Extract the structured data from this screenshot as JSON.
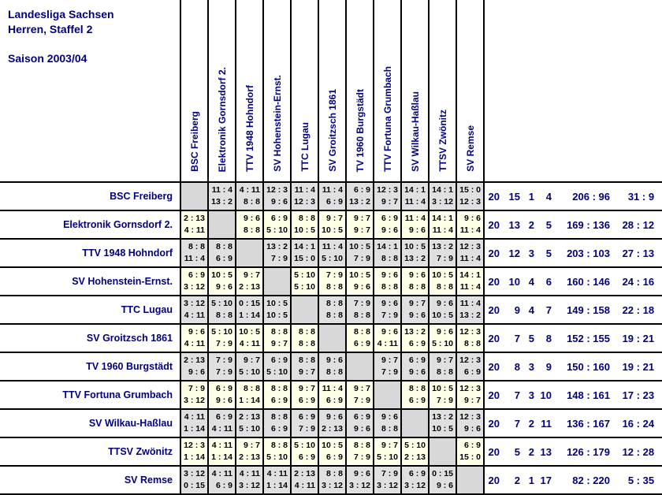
{
  "header": {
    "line1": "Landesliga Sachsen",
    "line2": "Herren, Staffel 2",
    "season": "Saison 2003/04"
  },
  "colors": {
    "navy": "#000080",
    "cell_text": "#000000",
    "row_gray": "#e0e0e0",
    "row_cream": "#ffffe8",
    "diagonal_gray": "#d8d8d8",
    "grid_line": "#000000",
    "background": "#ffffff"
  },
  "chart_data": {
    "type": "table",
    "title": "Landesliga Sachsen, Herren, Staffel 2 — Saison 2003/04",
    "teams": [
      "BSC Freiberg",
      "Elektronik Gornsdorf 2.",
      "TTV 1948 Hohndorf",
      "SV Hohenstein-Ernst.",
      "TTC Lugau",
      "SV Groitzsch 1861",
      "TV 1960 Burgstädt",
      "TTV Fortuna Grumbach",
      "SV Wilkau-Haßlau",
      "TTSV Zwönitz",
      "SV Remse"
    ],
    "results": [
      [
        null,
        [
          "11:4",
          "13:2"
        ],
        [
          "4:11",
          "8:8"
        ],
        [
          "12:3",
          "9:6"
        ],
        [
          "11:4",
          "12:3"
        ],
        [
          "11:4",
          "6:9"
        ],
        [
          "6:9",
          "13:2"
        ],
        [
          "12:3",
          "9:7"
        ],
        [
          "14:1",
          "11:4"
        ],
        [
          "14:1",
          "3:12"
        ],
        [
          "15:0",
          "12:3"
        ]
      ],
      [
        [
          "2:13",
          "4:11"
        ],
        null,
        [
          "9:6",
          "8:8"
        ],
        [
          "6:9",
          "5:10"
        ],
        [
          "8:8",
          "10:5"
        ],
        [
          "9:7",
          "10:5"
        ],
        [
          "9:7",
          "9:7"
        ],
        [
          "6:9",
          "9:6"
        ],
        [
          "11:4",
          "9:6"
        ],
        [
          "14:1",
          "11:4"
        ],
        [
          "9:6",
          "11:4"
        ]
      ],
      [
        [
          "8:8",
          "11:4"
        ],
        [
          "8:8",
          "6:9"
        ],
        null,
        [
          "13:2",
          "7:9"
        ],
        [
          "14:1",
          "15:0"
        ],
        [
          "11:4",
          "5:10"
        ],
        [
          "10:5",
          "7:9"
        ],
        [
          "14:1",
          "8:8"
        ],
        [
          "10:5",
          "13:2"
        ],
        [
          "13:2",
          "7:9"
        ],
        [
          "12:3",
          "11:4"
        ]
      ],
      [
        [
          "6:9",
          "3:12"
        ],
        [
          "10:5",
          "9:6"
        ],
        [
          "9:7",
          "2:13"
        ],
        null,
        [
          "5:10",
          "5:10"
        ],
        [
          "7:9",
          "8:8"
        ],
        [
          "10:5",
          "9:6"
        ],
        [
          "9:6",
          "8:8"
        ],
        [
          "9:6",
          "8:8"
        ],
        [
          "10:5",
          "8:8"
        ],
        [
          "14:1",
          "11:4"
        ]
      ],
      [
        [
          "3:12",
          "4:11"
        ],
        [
          "5:10",
          "8:8"
        ],
        [
          "0:15",
          "1:14"
        ],
        [
          "10:5",
          "10:5"
        ],
        null,
        [
          "8:8",
          "8:8"
        ],
        [
          "7:9",
          "8:8"
        ],
        [
          "9:6",
          "7:9"
        ],
        [
          "9:7",
          "9:6"
        ],
        [
          "9:6",
          "10:5"
        ],
        [
          "11:4",
          "13:2"
        ]
      ],
      [
        [
          "9:6",
          "4:11"
        ],
        [
          "5:10",
          "7:9"
        ],
        [
          "10:5",
          "4:11"
        ],
        [
          "8:8",
          "9:7"
        ],
        [
          "8:8",
          "8:8"
        ],
        null,
        [
          "8:8",
          "6:9"
        ],
        [
          "9:6",
          "4:11"
        ],
        [
          "13:2",
          "6:9"
        ],
        [
          "9:6",
          "5:10"
        ],
        [
          "12:3",
          "8:8"
        ]
      ],
      [
        [
          "2:13",
          "9:6"
        ],
        [
          "7:9",
          "7:9"
        ],
        [
          "9:7",
          "5:10"
        ],
        [
          "6:9",
          "5:10"
        ],
        [
          "8:8",
          "9:7"
        ],
        [
          "9:6",
          "8:8"
        ],
        null,
        [
          "9:7",
          "7:9"
        ],
        [
          "6:9",
          "9:6"
        ],
        [
          "9:7",
          "8:8"
        ],
        [
          "12:3",
          "6:9"
        ]
      ],
      [
        [
          "7:9",
          "3:12"
        ],
        [
          "6:9",
          "9:6"
        ],
        [
          "8:8",
          "1:14"
        ],
        [
          "8:8",
          "6:9"
        ],
        [
          "9:7",
          "6:9"
        ],
        [
          "11:4",
          "6:9"
        ],
        [
          "9:7",
          "7:9"
        ],
        null,
        [
          "8:8",
          "6:9"
        ],
        [
          "10:5",
          "7:9"
        ],
        [
          "12:3",
          "9:7"
        ]
      ],
      [
        [
          "4:11",
          "1:14"
        ],
        [
          "6:9",
          "4:11"
        ],
        [
          "2:13",
          "5:10"
        ],
        [
          "8:8",
          "6:9"
        ],
        [
          "6:9",
          "7:9"
        ],
        [
          "9:6",
          "2:13"
        ],
        [
          "6:9",
          "9:6"
        ],
        [
          "9:6",
          "8:8"
        ],
        null,
        [
          "13:2",
          "10:5"
        ],
        [
          "12:3",
          "9:6"
        ]
      ],
      [
        [
          "12:3",
          "1:14"
        ],
        [
          "4:11",
          "1:14"
        ],
        [
          "9:7",
          "2:13"
        ],
        [
          "8:8",
          "5:10"
        ],
        [
          "5:10",
          "6:9"
        ],
        [
          "10:5",
          "6:9"
        ],
        [
          "8:8",
          "7:9"
        ],
        [
          "9:7",
          "5:10"
        ],
        [
          "5:10",
          "2:13"
        ],
        null,
        [
          "6:9",
          "15:0"
        ]
      ],
      [
        [
          "3:12",
          "0:15"
        ],
        [
          "4:11",
          "6:9"
        ],
        [
          "4:11",
          "3:12"
        ],
        [
          "4:11",
          "1:14"
        ],
        [
          "2:13",
          "4:11"
        ],
        [
          "8:8",
          "3:12"
        ],
        [
          "9:6",
          "3:12"
        ],
        [
          "7:9",
          "3:12"
        ],
        [
          "6:9",
          "3:12"
        ],
        [
          "0:15",
          "9:6"
        ],
        null
      ]
    ],
    "summary": [
      {
        "games": 20,
        "won": 15,
        "drawn": 1,
        "lost": 4,
        "sets": "206:96",
        "points": "31:9"
      },
      {
        "games": 20,
        "won": 13,
        "drawn": 2,
        "lost": 5,
        "sets": "169:136",
        "points": "28:12"
      },
      {
        "games": 20,
        "won": 12,
        "drawn": 3,
        "lost": 5,
        "sets": "203:103",
        "points": "27:13"
      },
      {
        "games": 20,
        "won": 10,
        "drawn": 4,
        "lost": 6,
        "sets": "160:146",
        "points": "24:16"
      },
      {
        "games": 20,
        "won": 9,
        "drawn": 4,
        "lost": 7,
        "sets": "149:158",
        "points": "22:18"
      },
      {
        "games": 20,
        "won": 7,
        "drawn": 5,
        "lost": 8,
        "sets": "152:155",
        "points": "19:21"
      },
      {
        "games": 20,
        "won": 8,
        "drawn": 3,
        "lost": 9,
        "sets": "150:160",
        "points": "19:21"
      },
      {
        "games": 20,
        "won": 7,
        "drawn": 3,
        "lost": 10,
        "sets": "148:161",
        "points": "17:23"
      },
      {
        "games": 20,
        "won": 7,
        "drawn": 2,
        "lost": 11,
        "sets": "136:167",
        "points": "16:24"
      },
      {
        "games": 20,
        "won": 5,
        "drawn": 2,
        "lost": 13,
        "sets": "126:179",
        "points": "12:28"
      },
      {
        "games": 20,
        "won": 2,
        "drawn": 1,
        "lost": 17,
        "sets": "82:220",
        "points": "5:35"
      }
    ]
  }
}
